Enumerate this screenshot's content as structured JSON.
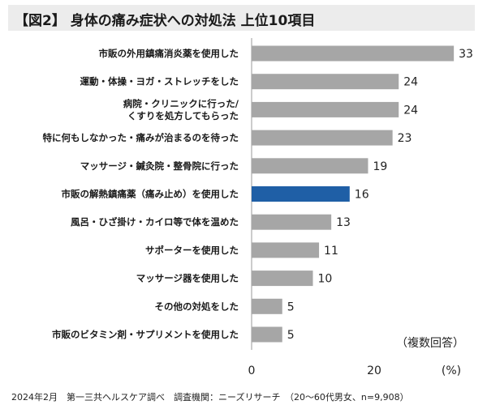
{
  "title": "【図2】 身体の痛み症状への対処法 上位10項目",
  "note": "（複数回答）",
  "unit_label": "(%)",
  "footnote": "2024年2月　第一三共ヘルスケア調べ　調査機関：ニーズリサーチ　（20～60代男女、n=9,908）",
  "colors": {
    "bar": "#a6a6a6",
    "highlight": "#1f5fa6",
    "axis": "#9a9a9a"
  },
  "chart_data": {
    "type": "bar",
    "orientation": "horizontal",
    "categories": [
      "市販の外用鎮痛消炎薬を使用した",
      "運動・体操・ヨガ・ストレッチをした",
      "病院・クリニックに行った/\nくすりを処方してもらった",
      "特に何もしなかった・痛みが治まるのを待った",
      "マッサージ・鍼灸院・整骨院に行った",
      "市販の解熱鎮痛薬（痛み止め）を使用した",
      "風呂・ひざ掛け・カイロ等で体を温めた",
      "サポーターを使用した",
      "マッサージ器を使用した",
      "その他の対処をした",
      "市販のビタミン剤・サプリメントを使用した"
    ],
    "values": [
      33,
      24,
      24,
      23,
      19,
      16,
      13,
      11,
      10,
      5,
      5
    ],
    "highlight_index": 5,
    "xlim": [
      0,
      40
    ],
    "xticks": [
      0,
      20
    ],
    "xlabel": "(%)",
    "ylabel": "",
    "grid": false,
    "legend": "none"
  }
}
